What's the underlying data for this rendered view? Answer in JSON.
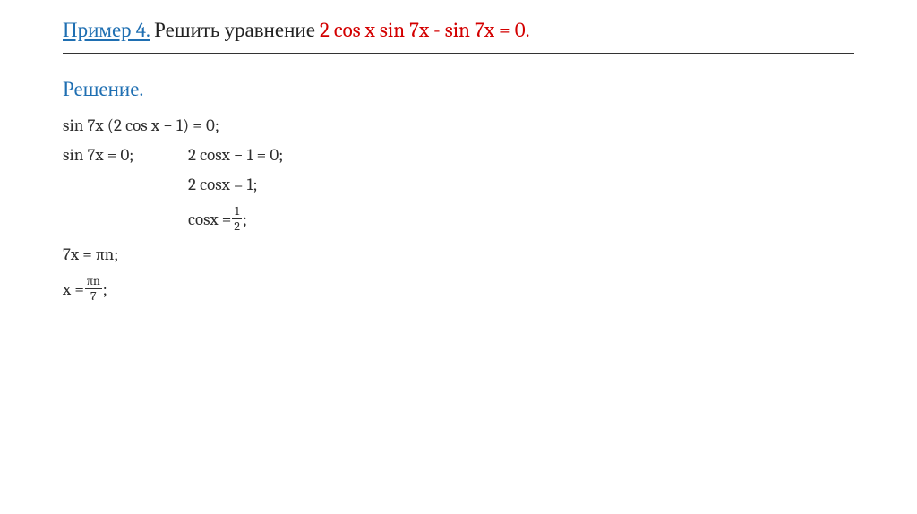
{
  "title": {
    "label": "Пример 4.",
    "action": " Решить уравнение ",
    "equation": "2 cos x sin 7x - sin 7x = 0",
    "dot": "."
  },
  "solution_label": "Решение.",
  "steps": {
    "s1": "sin 7x (2 cos x − 1) = 0;",
    "s2_left": "sin 7x = 0;",
    "s2_right": "2 cosx − 1 = 0;",
    "s3": "2 cosx = 1;",
    "s4_prefix": "cosx = ",
    "s4_num": "1",
    "s4_den": "2",
    "s4_suffix": " ;",
    "s5": "7x = πn;",
    "s6_prefix": "x = ",
    "s6_num": "πn",
    "s6_den": "7",
    "s6_suffix": ";"
  },
  "colors": {
    "blue": "#1f6fb2",
    "red": "#d30000",
    "text": "#2e2e2e",
    "rule": "#333333",
    "bg": "#ffffff"
  },
  "typography": {
    "title_fontsize": 23,
    "body_fontsize": 19,
    "frac_fontsize": 14,
    "font_family": "Cambria/Georgia serif"
  }
}
